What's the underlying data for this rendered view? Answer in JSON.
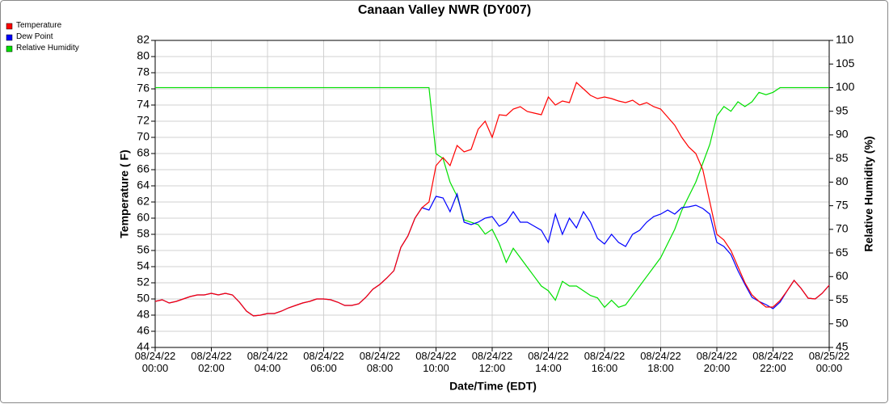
{
  "chart_data": {
    "type": "line",
    "title": "Canaan Valley NWR (DY007)",
    "xlabel": "Date/Time (EDT)",
    "ylabel": "Temperature ( F)",
    "y2label": "Relative Humidity (%)",
    "x": [
      "08/24/22 00:00",
      "08/24/22 00:15",
      "08/24/22 00:30",
      "08/24/22 00:45",
      "08/24/22 01:00",
      "08/24/22 01:15",
      "08/24/22 01:30",
      "08/24/22 01:45",
      "08/24/22 02:00",
      "08/24/22 02:15",
      "08/24/22 02:30",
      "08/24/22 02:45",
      "08/24/22 03:00",
      "08/24/22 03:15",
      "08/24/22 03:30",
      "08/24/22 03:45",
      "08/24/22 04:00",
      "08/24/22 04:15",
      "08/24/22 04:30",
      "08/24/22 04:45",
      "08/24/22 05:00",
      "08/24/22 05:15",
      "08/24/22 05:30",
      "08/24/22 05:45",
      "08/24/22 06:00",
      "08/24/22 06:15",
      "08/24/22 06:30",
      "08/24/22 06:45",
      "08/24/22 07:00",
      "08/24/22 07:15",
      "08/24/22 07:30",
      "08/24/22 07:45",
      "08/24/22 08:00",
      "08/24/22 08:15",
      "08/24/22 08:30",
      "08/24/22 08:45",
      "08/24/22 09:00",
      "08/24/22 09:15",
      "08/24/22 09:30",
      "08/24/22 09:45",
      "08/24/22 10:00",
      "08/24/22 10:15",
      "08/24/22 10:30",
      "08/24/22 10:45",
      "08/24/22 11:00",
      "08/24/22 11:15",
      "08/24/22 11:30",
      "08/24/22 11:45",
      "08/24/22 12:00",
      "08/24/22 12:15",
      "08/24/22 12:30",
      "08/24/22 12:45",
      "08/24/22 13:00",
      "08/24/22 13:15",
      "08/24/22 13:30",
      "08/24/22 13:45",
      "08/24/22 14:00",
      "08/24/22 14:15",
      "08/24/22 14:30",
      "08/24/22 14:45",
      "08/24/22 15:00",
      "08/24/22 15:15",
      "08/24/22 15:30",
      "08/24/22 15:45",
      "08/24/22 16:00",
      "08/24/22 16:15",
      "08/24/22 16:30",
      "08/24/22 16:45",
      "08/24/22 17:00",
      "08/24/22 17:15",
      "08/24/22 17:30",
      "08/24/22 17:45",
      "08/24/22 18:00",
      "08/24/22 18:15",
      "08/24/22 18:30",
      "08/24/22 18:45",
      "08/24/22 19:00",
      "08/24/22 19:15",
      "08/24/22 19:30",
      "08/24/22 19:45",
      "08/24/22 20:00",
      "08/24/22 20:15",
      "08/24/22 20:30",
      "08/24/22 20:45",
      "08/24/22 21:00",
      "08/24/22 21:15",
      "08/24/22 21:30",
      "08/24/22 21:45",
      "08/24/22 22:00",
      "08/24/22 22:15",
      "08/24/22 22:30",
      "08/24/22 22:45",
      "08/24/22 23:00",
      "08/24/22 23:15",
      "08/24/22 23:30",
      "08/24/22 23:45",
      "08/25/22 00:00"
    ],
    "series": [
      {
        "name": "Temperature",
        "color": "#ff0000",
        "values": [
          49.7,
          49.9,
          49.5,
          49.7,
          50.0,
          50.3,
          50.5,
          50.5,
          50.7,
          50.5,
          50.7,
          50.5,
          49.6,
          48.5,
          47.9,
          48.0,
          48.2,
          48.2,
          48.5,
          48.9,
          49.2,
          49.5,
          49.7,
          50.0,
          50.0,
          49.9,
          49.6,
          49.2,
          49.2,
          49.4,
          50.2,
          51.2,
          51.8,
          52.6,
          53.5,
          56.4,
          57.8,
          60.0,
          61.3,
          62.0,
          66.5,
          67.5,
          66.5,
          69.0,
          68.2,
          68.5,
          71.0,
          72.0,
          70.0,
          72.8,
          72.7,
          73.5,
          73.8,
          73.2,
          73.0,
          72.8,
          75.0,
          74.0,
          74.5,
          74.3,
          76.8,
          76.0,
          75.2,
          74.8,
          75.0,
          74.8,
          74.5,
          74.3,
          74.6,
          74.0,
          74.3,
          73.8,
          73.5,
          72.5,
          71.5,
          70.0,
          68.8,
          68.0,
          66.0,
          62.0,
          58.0,
          57.3,
          56.0,
          54.0,
          52.0,
          50.5,
          49.7,
          49.0,
          49.0,
          49.8,
          51.0,
          52.3,
          51.3,
          50.1,
          50.0,
          50.7,
          51.7
        ]
      },
      {
        "name": "Dew Point",
        "color": "#0000ff",
        "values": [
          49.7,
          49.9,
          49.5,
          49.7,
          50.0,
          50.3,
          50.5,
          50.5,
          50.7,
          50.5,
          50.7,
          50.5,
          49.6,
          48.5,
          47.9,
          48.0,
          48.2,
          48.2,
          48.5,
          48.9,
          49.2,
          49.5,
          49.7,
          50.0,
          50.0,
          49.9,
          49.6,
          49.2,
          49.2,
          49.4,
          50.2,
          51.2,
          51.8,
          52.6,
          53.5,
          56.4,
          57.8,
          60.0,
          61.3,
          61.0,
          62.7,
          62.5,
          60.8,
          63.0,
          59.5,
          59.2,
          59.5,
          60.0,
          60.2,
          59.0,
          59.5,
          60.8,
          59.5,
          59.5,
          59.0,
          58.5,
          57.0,
          60.5,
          58.0,
          60.0,
          58.8,
          60.8,
          59.5,
          57.5,
          56.8,
          58.0,
          57.0,
          56.5,
          58.0,
          58.5,
          59.5,
          60.2,
          60.5,
          61.0,
          60.5,
          61.3,
          61.4,
          61.6,
          61.2,
          60.5,
          57.0,
          56.5,
          55.5,
          53.5,
          51.8,
          50.2,
          49.7,
          49.3,
          48.8,
          49.6,
          51.0,
          52.3,
          51.3,
          50.1,
          50.0,
          50.7,
          51.7
        ]
      },
      {
        "name": "Relative Humidity",
        "color": "#00e000",
        "axis": "y2",
        "values": [
          100,
          100,
          100,
          100,
          100,
          100,
          100,
          100,
          100,
          100,
          100,
          100,
          100,
          100,
          100,
          100,
          100,
          100,
          100,
          100,
          100,
          100,
          100,
          100,
          100,
          100,
          100,
          100,
          100,
          100,
          100,
          100,
          100,
          100,
          100,
          100,
          100,
          100,
          100,
          100,
          86,
          85,
          80,
          77,
          72,
          71.5,
          71,
          69,
          70,
          67,
          63,
          66,
          64,
          62,
          60,
          58,
          57,
          55,
          59,
          58,
          58,
          57,
          56,
          55.5,
          53.5,
          55,
          53.5,
          54,
          56,
          58,
          60,
          62,
          64,
          67,
          70,
          74,
          77,
          80,
          84,
          88,
          94,
          96,
          95,
          97,
          96,
          97,
          99,
          98.5,
          99,
          100,
          100,
          100,
          100,
          100,
          100,
          100,
          100
        ]
      }
    ],
    "xlim": [
      "08/24/22 00:00",
      "08/25/22 00:00"
    ],
    "xticks": [
      {
        "value": "08/24/22 00:00",
        "label": "08/24/22\n00:00"
      },
      {
        "value": "08/24/22 02:00",
        "label": "08/24/22\n02:00"
      },
      {
        "value": "08/24/22 04:00",
        "label": "08/24/22\n04:00"
      },
      {
        "value": "08/24/22 06:00",
        "label": "08/24/22\n06:00"
      },
      {
        "value": "08/24/22 08:00",
        "label": "08/24/22\n08:00"
      },
      {
        "value": "08/24/22 10:00",
        "label": "08/24/22\n10:00"
      },
      {
        "value": "08/24/22 12:00",
        "label": "08/24/22\n12:00"
      },
      {
        "value": "08/24/22 14:00",
        "label": "08/24/22\n14:00"
      },
      {
        "value": "08/24/22 16:00",
        "label": "08/24/22\n16:00"
      },
      {
        "value": "08/24/22 18:00",
        "label": "08/24/22\n18:00"
      },
      {
        "value": "08/24/22 20:00",
        "label": "08/24/22\n20:00"
      },
      {
        "value": "08/24/22 22:00",
        "label": "08/24/22\n22:00"
      },
      {
        "value": "08/25/22 00:00",
        "label": "08/25/22\n00:00"
      }
    ],
    "ylim": [
      44,
      82
    ],
    "yticks": [
      44,
      46,
      48,
      50,
      52,
      54,
      56,
      58,
      60,
      62,
      64,
      66,
      68,
      70,
      72,
      74,
      76,
      78,
      80,
      82
    ],
    "y2lim": [
      45,
      110
    ],
    "y2ticks": [
      45,
      50,
      55,
      60,
      65,
      70,
      75,
      80,
      85,
      90,
      95,
      100,
      105,
      110
    ],
    "grid": true,
    "legend": "top-left"
  }
}
